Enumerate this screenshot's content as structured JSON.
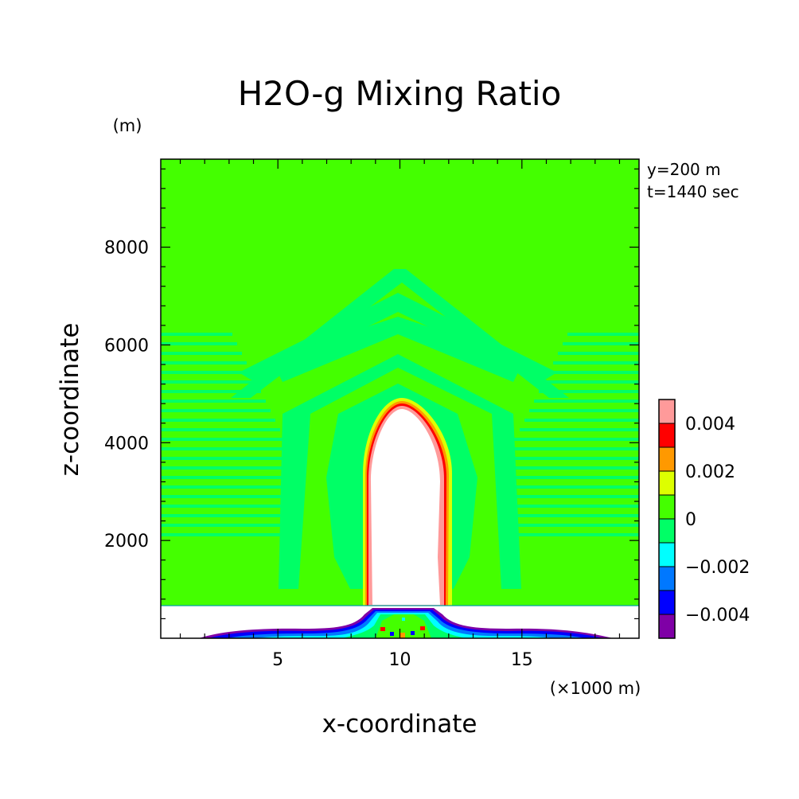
{
  "chart_data": {
    "type": "heatmap",
    "title": "H2O-g Mixing Ratio",
    "xlabel": "x-coordinate",
    "ylabel": "z-coordinate",
    "x_unit": "(×1000 m)",
    "y_unit": "(m)",
    "annotations": [
      "y=200 m",
      "t=1440 sec"
    ],
    "xlim": [
      0.2,
      19.8
    ],
    "ylim": [
      0,
      9800
    ],
    "x_ticks": [
      5,
      10,
      15
    ],
    "y_ticks": [
      2000,
      4000,
      6000,
      8000
    ],
    "colorbar": {
      "levels": [
        -0.005,
        -0.004,
        -0.003,
        -0.002,
        -0.001,
        0,
        0.001,
        0.002,
        0.003,
        0.004,
        0.005
      ],
      "colors": [
        "#7f00a6",
        "#0000ff",
        "#0078ff",
        "#00ffff",
        "#00ff66",
        "#44ff00",
        "#ddff00",
        "#ff9900",
        "#ff0000",
        "#ff9a9a"
      ],
      "tick_values": [
        0.004,
        0.002,
        0,
        -0.002,
        -0.004
      ],
      "tick_labels": [
        "0.004",
        "0.002",
        "0",
        "−0.002",
        "−0.004"
      ]
    },
    "background_color": "#44ff00",
    "blank_regions": [
      {
        "description": "plume core (no data)",
        "x_range": [
          8.8,
          11.7
        ],
        "z_range": [
          700,
          4900
        ]
      },
      {
        "description": "layer below 700 m (no data)",
        "x_range": [
          0.2,
          19.8
        ],
        "z_range": [
          0,
          700
        ]
      }
    ]
  }
}
